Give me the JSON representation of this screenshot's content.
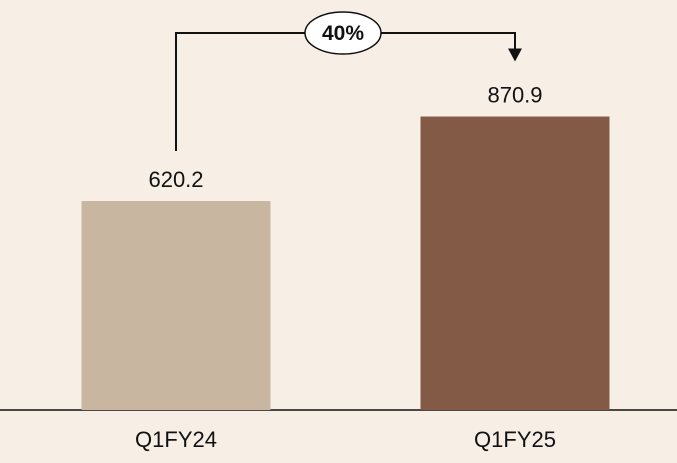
{
  "chart_data": {
    "type": "bar",
    "categories": [
      "Q1FY24",
      "Q1FY25"
    ],
    "values": [
      620.2,
      870.9
    ],
    "value_labels": [
      "620.2",
      "870.9"
    ],
    "title": "",
    "xlabel": "",
    "ylabel": "",
    "ylim": [
      0,
      1000
    ],
    "grid": false,
    "bar_colors": [
      "#c9b6a0",
      "#825a46"
    ],
    "annotation": {
      "text": "40%",
      "from": "Q1FY24",
      "to": "Q1FY25"
    }
  },
  "colors": {
    "background": "#f7efe6",
    "axis": "#111111",
    "text": "#111111"
  }
}
